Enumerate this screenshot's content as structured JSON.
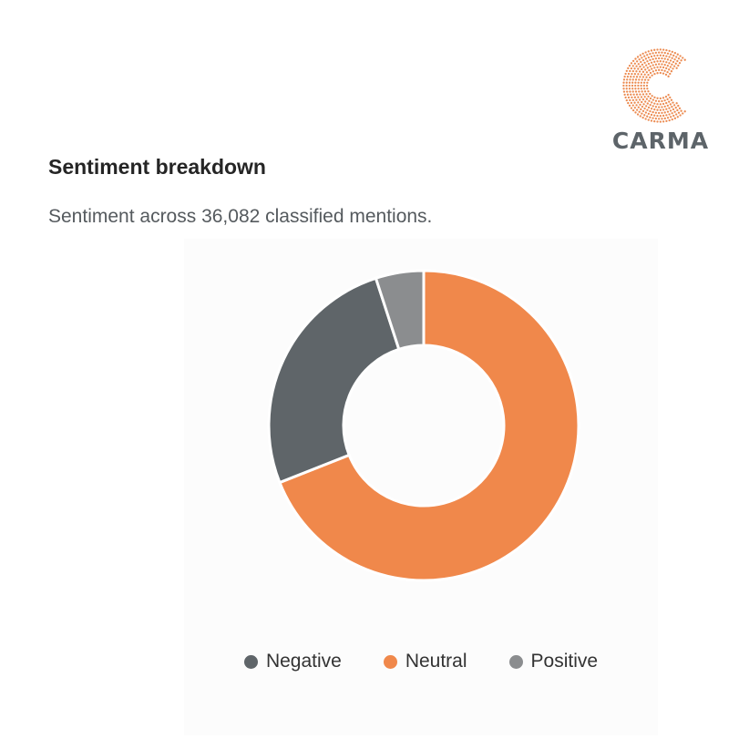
{
  "brand": {
    "name": "CARMA",
    "color": "#ec8c52",
    "text_color": "#5d6469"
  },
  "header": {
    "title": "Sentiment breakdown",
    "subtitle": "Sentiment across 36,082 classified mentions."
  },
  "chart_data": {
    "type": "pie",
    "donut": true,
    "total": 36082,
    "categories": [
      "Negative",
      "Neutral",
      "Positive"
    ],
    "values": [
      26.0,
      69.0,
      5.0
    ],
    "colors": [
      "#5f6569",
      "#f0884b",
      "#8b8d8f"
    ],
    "legend_placement": "bottom",
    "start_angle": "top",
    "direction": "clockwise",
    "slice_order": [
      "Neutral",
      "Negative",
      "Positive"
    ]
  }
}
